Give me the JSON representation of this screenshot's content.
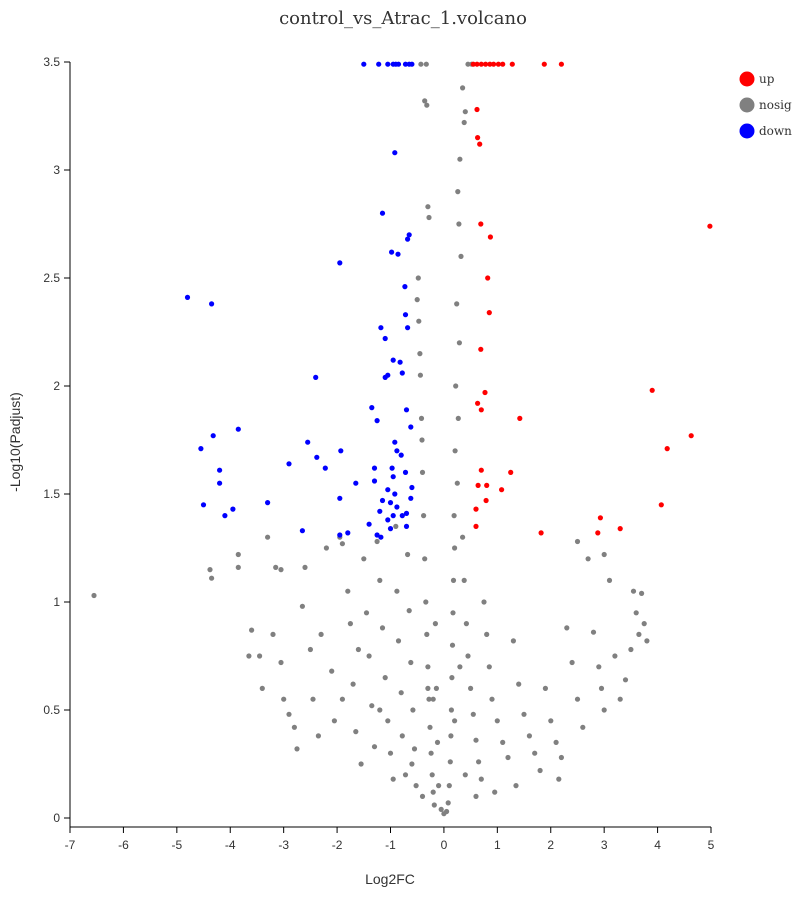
{
  "chart_data": {
    "type": "scatter",
    "title": "control_vs_Atrac_1.volcano",
    "xlabel": "Log2FC",
    "ylabel": "-Log10(Padjust)",
    "xlim": [
      -7,
      5
    ],
    "ylim": [
      0,
      3.5
    ],
    "xticks": [
      "-7",
      "-6",
      "-5",
      "-4",
      "-3",
      "-2",
      "-1",
      "0",
      "1",
      "2",
      "3",
      "4",
      "5"
    ],
    "yticks": [
      "0",
      "0.5",
      "1",
      "1.5",
      "2",
      "2.5",
      "3",
      "3.5"
    ],
    "legend_position": "top-right",
    "series": [
      {
        "name": "up",
        "color": "#ff0000",
        "points": [
          [
            0.55,
            3.49
          ],
          [
            0.62,
            3.49
          ],
          [
            0.7,
            3.49
          ],
          [
            0.78,
            3.49
          ],
          [
            0.86,
            3.49
          ],
          [
            0.93,
            3.49
          ],
          [
            1.02,
            3.49
          ],
          [
            1.1,
            3.49
          ],
          [
            1.28,
            3.49
          ],
          [
            1.88,
            3.49
          ],
          [
            2.2,
            3.49
          ],
          [
            0.62,
            3.28
          ],
          [
            0.63,
            3.15
          ],
          [
            0.67,
            3.12
          ],
          [
            4.98,
            2.74
          ],
          [
            0.69,
            2.75
          ],
          [
            0.87,
            2.69
          ],
          [
            0.82,
            2.5
          ],
          [
            0.85,
            2.34
          ],
          [
            0.69,
            2.17
          ],
          [
            3.9,
            1.98
          ],
          [
            0.77,
            1.97
          ],
          [
            0.63,
            1.92
          ],
          [
            0.7,
            1.89
          ],
          [
            1.42,
            1.85
          ],
          [
            4.63,
            1.77
          ],
          [
            4.18,
            1.71
          ],
          [
            0.7,
            1.61
          ],
          [
            1.25,
            1.6
          ],
          [
            0.64,
            1.54
          ],
          [
            0.8,
            1.54
          ],
          [
            1.08,
            1.52
          ],
          [
            0.79,
            1.47
          ],
          [
            4.07,
            1.45
          ],
          [
            0.6,
            1.43
          ],
          [
            2.93,
            1.39
          ],
          [
            0.6,
            1.35
          ],
          [
            3.3,
            1.34
          ],
          [
            1.82,
            1.32
          ],
          [
            2.88,
            1.32
          ]
        ]
      },
      {
        "name": "nosig",
        "color": "#808080",
        "points": [
          [
            -6.55,
            1.03
          ],
          [
            -4.38,
            1.15
          ],
          [
            -4.35,
            1.11
          ],
          [
            -3.85,
            1.22
          ],
          [
            -3.85,
            1.16
          ],
          [
            -3.6,
            0.87
          ],
          [
            -3.65,
            0.75
          ],
          [
            -3.4,
            0.6
          ],
          [
            -3.3,
            1.3
          ],
          [
            -3.15,
            1.16
          ],
          [
            -3.05,
            1.15
          ],
          [
            -3.2,
            0.85
          ],
          [
            -3.05,
            0.72
          ],
          [
            -3.0,
            0.55
          ],
          [
            -2.8,
            0.42
          ],
          [
            -2.6,
            1.16
          ],
          [
            -2.65,
            0.98
          ],
          [
            -2.5,
            0.78
          ],
          [
            -2.45,
            0.55
          ],
          [
            -2.35,
            0.38
          ],
          [
            -2.2,
            1.25
          ],
          [
            -2.1,
            0.68
          ],
          [
            -2.05,
            0.45
          ],
          [
            -1.95,
            1.3
          ],
          [
            -1.9,
            1.27
          ],
          [
            -1.8,
            1.05
          ],
          [
            -1.75,
            0.9
          ],
          [
            -1.7,
            0.62
          ],
          [
            -1.65,
            0.4
          ],
          [
            -1.55,
            0.25
          ],
          [
            -1.5,
            1.2
          ],
          [
            -1.45,
            0.95
          ],
          [
            -1.4,
            0.75
          ],
          [
            -1.35,
            0.52
          ],
          [
            -1.3,
            0.33
          ],
          [
            -1.25,
            1.28
          ],
          [
            -1.2,
            1.1
          ],
          [
            -1.15,
            0.88
          ],
          [
            -1.1,
            0.65
          ],
          [
            -1.05,
            0.45
          ],
          [
            -1.0,
            0.3
          ],
          [
            -0.95,
            0.18
          ],
          [
            -0.9,
            1.35
          ],
          [
            -0.88,
            1.05
          ],
          [
            -0.85,
            0.82
          ],
          [
            -0.8,
            0.58
          ],
          [
            -0.78,
            0.38
          ],
          [
            -0.72,
            0.2
          ],
          [
            -0.68,
            1.22
          ],
          [
            -0.65,
            0.96
          ],
          [
            -0.62,
            0.72
          ],
          [
            -0.58,
            0.5
          ],
          [
            -0.55,
            0.32
          ],
          [
            -0.52,
            0.15
          ],
          [
            -0.48,
            2.5
          ],
          [
            -0.45,
            2.15
          ],
          [
            -0.42,
            1.85
          ],
          [
            -0.4,
            1.6
          ],
          [
            -0.38,
            1.4
          ],
          [
            -0.36,
            1.2
          ],
          [
            -0.34,
            1.0
          ],
          [
            -0.32,
            0.85
          ],
          [
            -0.3,
            0.7
          ],
          [
            -0.28,
            0.55
          ],
          [
            -0.26,
            0.42
          ],
          [
            -0.24,
            0.3
          ],
          [
            -0.22,
            0.2
          ],
          [
            -0.2,
            0.12
          ],
          [
            -0.18,
            0.06
          ],
          [
            -0.33,
            3.49
          ],
          [
            -0.43,
            3.49
          ],
          [
            -0.36,
            3.32
          ],
          [
            -0.32,
            3.3
          ],
          [
            -0.3,
            2.83
          ],
          [
            -0.28,
            2.78
          ],
          [
            -0.5,
            2.4
          ],
          [
            -0.47,
            2.3
          ],
          [
            -0.44,
            2.05
          ],
          [
            -0.41,
            1.75
          ],
          [
            -0.16,
            0.9
          ],
          [
            -0.14,
            0.6
          ],
          [
            -0.12,
            0.35
          ],
          [
            -0.1,
            0.15
          ],
          [
            0.52,
            3.49
          ],
          [
            0.45,
            3.49
          ],
          [
            0.35,
            3.38
          ],
          [
            0.4,
            3.27
          ],
          [
            0.38,
            3.22
          ],
          [
            0.3,
            3.05
          ],
          [
            0.26,
            2.9
          ],
          [
            0.28,
            2.75
          ],
          [
            0.32,
            2.6
          ],
          [
            0.24,
            2.38
          ],
          [
            0.29,
            2.2
          ],
          [
            0.22,
            2.0
          ],
          [
            0.27,
            1.85
          ],
          [
            0.21,
            1.7
          ],
          [
            0.25,
            1.55
          ],
          [
            0.19,
            1.4
          ],
          [
            0.2,
            1.25
          ],
          [
            0.18,
            1.1
          ],
          [
            0.17,
            0.95
          ],
          [
            0.16,
            0.8
          ],
          [
            0.15,
            0.65
          ],
          [
            0.14,
            0.5
          ],
          [
            0.13,
            0.38
          ],
          [
            0.12,
            0.26
          ],
          [
            0.1,
            0.15
          ],
          [
            0.08,
            0.07
          ],
          [
            0.05,
            0.03
          ],
          [
            0.0,
            0.02
          ],
          [
            -0.05,
            0.04
          ],
          [
            0.35,
            1.3
          ],
          [
            0.38,
            1.1
          ],
          [
            0.42,
            0.9
          ],
          [
            0.45,
            0.75
          ],
          [
            0.5,
            0.6
          ],
          [
            0.55,
            0.48
          ],
          [
            0.6,
            0.36
          ],
          [
            0.65,
            0.26
          ],
          [
            0.7,
            0.18
          ],
          [
            0.75,
            1.0
          ],
          [
            0.8,
            0.85
          ],
          [
            0.85,
            0.7
          ],
          [
            0.9,
            0.55
          ],
          [
            1.0,
            0.45
          ],
          [
            1.1,
            0.35
          ],
          [
            1.2,
            0.28
          ],
          [
            1.3,
            0.82
          ],
          [
            1.4,
            0.62
          ],
          [
            1.5,
            0.48
          ],
          [
            1.6,
            0.38
          ],
          [
            1.7,
            0.3
          ],
          [
            1.8,
            0.22
          ],
          [
            1.9,
            0.6
          ],
          [
            2.0,
            0.45
          ],
          [
            2.1,
            0.35
          ],
          [
            2.2,
            0.28
          ],
          [
            2.3,
            0.88
          ],
          [
            2.4,
            0.72
          ],
          [
            2.5,
            0.55
          ],
          [
            2.6,
            0.42
          ],
          [
            2.5,
            1.28
          ],
          [
            2.7,
            1.2
          ],
          [
            2.8,
            0.86
          ],
          [
            2.9,
            0.7
          ],
          [
            3.0,
            0.5
          ],
          [
            3.1,
            1.1
          ],
          [
            3.2,
            0.75
          ],
          [
            3.3,
            0.55
          ],
          [
            3.4,
            0.64
          ],
          [
            3.5,
            0.78
          ],
          [
            3.6,
            0.95
          ],
          [
            3.55,
            1.05
          ],
          [
            3.7,
            1.04
          ],
          [
            3.65,
            0.85
          ],
          [
            3.8,
            0.82
          ],
          [
            3.0,
            1.22
          ],
          [
            2.95,
            0.6
          ],
          [
            3.75,
            0.9
          ],
          [
            2.15,
            0.18
          ],
          [
            1.35,
            0.15
          ],
          [
            0.95,
            0.12
          ],
          [
            -1.6,
            0.78
          ],
          [
            -2.3,
            0.85
          ],
          [
            -2.9,
            0.48
          ],
          [
            -3.45,
            0.75
          ],
          [
            -2.75,
            0.32
          ],
          [
            -1.9,
            0.55
          ],
          [
            -1.2,
            0.5
          ],
          [
            -0.6,
            0.25
          ],
          [
            0.4,
            0.2
          ],
          [
            0.6,
            0.1
          ],
          [
            -0.4,
            0.1
          ],
          [
            0.2,
            0.45
          ],
          [
            -0.2,
            0.55
          ],
          [
            0.3,
            0.7
          ],
          [
            -0.3,
            0.6
          ]
        ]
      },
      {
        "name": "down",
        "color": "#0000ff",
        "points": [
          [
            -1.5,
            3.49
          ],
          [
            -1.22,
            3.49
          ],
          [
            -1.05,
            3.49
          ],
          [
            -0.95,
            3.49
          ],
          [
            -0.9,
            3.49
          ],
          [
            -0.85,
            3.49
          ],
          [
            -0.72,
            3.49
          ],
          [
            -0.65,
            3.49
          ],
          [
            -0.6,
            3.49
          ],
          [
            -0.92,
            3.08
          ],
          [
            -1.15,
            2.8
          ],
          [
            -0.65,
            2.7
          ],
          [
            -0.68,
            2.68
          ],
          [
            -0.98,
            2.62
          ],
          [
            -0.86,
            2.61
          ],
          [
            -1.95,
            2.57
          ],
          [
            -0.73,
            2.46
          ],
          [
            -4.8,
            2.41
          ],
          [
            -4.35,
            2.38
          ],
          [
            -0.72,
            2.33
          ],
          [
            -1.18,
            2.27
          ],
          [
            -0.68,
            2.27
          ],
          [
            -1.1,
            2.22
          ],
          [
            -0.95,
            2.12
          ],
          [
            -0.82,
            2.11
          ],
          [
            -0.78,
            2.06
          ],
          [
            -1.05,
            2.05
          ],
          [
            -1.1,
            2.04
          ],
          [
            -2.4,
            2.04
          ],
          [
            -1.35,
            1.9
          ],
          [
            -0.7,
            1.89
          ],
          [
            -1.25,
            1.84
          ],
          [
            -0.62,
            1.81
          ],
          [
            -3.85,
            1.8
          ],
          [
            -4.32,
            1.77
          ],
          [
            -2.55,
            1.74
          ],
          [
            -0.92,
            1.74
          ],
          [
            -4.55,
            1.71
          ],
          [
            -0.88,
            1.7
          ],
          [
            -1.93,
            1.7
          ],
          [
            -0.8,
            1.68
          ],
          [
            -2.38,
            1.67
          ],
          [
            -2.9,
            1.64
          ],
          [
            -2.22,
            1.62
          ],
          [
            -0.97,
            1.62
          ],
          [
            -1.3,
            1.62
          ],
          [
            -4.2,
            1.61
          ],
          [
            -0.72,
            1.6
          ],
          [
            -0.95,
            1.58
          ],
          [
            -4.2,
            1.55
          ],
          [
            -1.3,
            1.56
          ],
          [
            -1.65,
            1.55
          ],
          [
            -0.6,
            1.53
          ],
          [
            -1.05,
            1.52
          ],
          [
            -0.92,
            1.5
          ],
          [
            -1.95,
            1.48
          ],
          [
            -0.62,
            1.48
          ],
          [
            -1.15,
            1.47
          ],
          [
            -3.3,
            1.46
          ],
          [
            -1.0,
            1.46
          ],
          [
            -4.5,
            1.45
          ],
          [
            -0.88,
            1.44
          ],
          [
            -3.95,
            1.43
          ],
          [
            -1.2,
            1.42
          ],
          [
            -0.7,
            1.41
          ],
          [
            -0.95,
            1.4
          ],
          [
            -0.78,
            1.4
          ],
          [
            -4.1,
            1.4
          ],
          [
            -1.05,
            1.38
          ],
          [
            -1.4,
            1.36
          ],
          [
            -0.7,
            1.35
          ],
          [
            -1.0,
            1.34
          ],
          [
            -2.65,
            1.33
          ],
          [
            -1.8,
            1.32
          ],
          [
            -1.25,
            1.31
          ],
          [
            -1.95,
            1.31
          ],
          [
            -1.18,
            1.3
          ]
        ]
      }
    ]
  }
}
